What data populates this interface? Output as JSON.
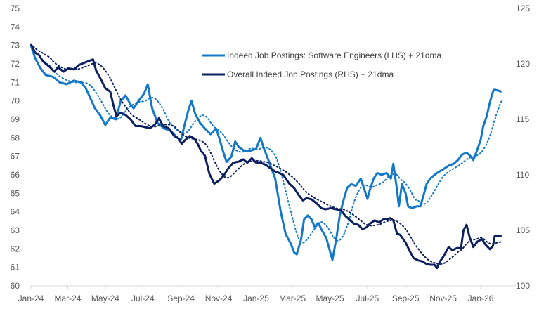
{
  "chart_data": {
    "type": "line",
    "title": "",
    "xlabel": "",
    "ylabel_left": "",
    "ylabel_right": "",
    "x_ticks": [
      "Jan-24",
      "Mar-24",
      "May-24",
      "Jul-24",
      "Sep-24",
      "Nov-24",
      "Jan-25",
      "Mar-25",
      "May-25",
      "Jul-25",
      "Sep-25",
      "Nov-25",
      "Jan-26"
    ],
    "y_left": {
      "range": [
        60,
        75
      ],
      "ticks": [
        "60",
        "61",
        "62",
        "63",
        "64",
        "65",
        "66",
        "67",
        "68",
        "69",
        "70",
        "71",
        "72",
        "73",
        "74",
        "75"
      ]
    },
    "y_right": {
      "range": [
        100,
        125
      ],
      "ticks": [
        "100",
        "105",
        "110",
        "115",
        "120",
        "125"
      ]
    },
    "grid": false,
    "legend": {
      "placement": "top-right",
      "entries": [
        "Indeed Job Postings: Software Engineers (LHS) + 21dma",
        "Overall Indeed Job Postings (RHS) + 21dma"
      ]
    },
    "moving_average": "21dma, dotted",
    "series": [
      {
        "name": "Indeed Job Postings: Software Engineers (LHS) + 21dma",
        "axis": "left",
        "color": "#1478c8",
        "points": [
          [
            "2024-01-01",
            73.0
          ],
          [
            "2024-01-08",
            72.3
          ],
          [
            "2024-01-16",
            71.8
          ],
          [
            "2024-01-25",
            71.4
          ],
          [
            "2024-02-06",
            71.3
          ],
          [
            "2024-02-17",
            71.0
          ],
          [
            "2024-02-28",
            70.9
          ],
          [
            "2024-03-11",
            71.1
          ],
          [
            "2024-03-22",
            71.0
          ],
          [
            "2024-03-30",
            70.7
          ],
          [
            "2024-04-06",
            70.2
          ],
          [
            "2024-04-14",
            69.6
          ],
          [
            "2024-04-23",
            69.2
          ],
          [
            "2024-05-01",
            68.7
          ],
          [
            "2024-05-09",
            69.1
          ],
          [
            "2024-05-18",
            69.0
          ],
          [
            "2024-05-26",
            70.0
          ],
          [
            "2024-06-03",
            70.3
          ],
          [
            "2024-06-11",
            69.8
          ],
          [
            "2024-06-16",
            69.6
          ],
          [
            "2024-06-24",
            70.0
          ],
          [
            "2024-07-03",
            70.4
          ],
          [
            "2024-07-09",
            70.9
          ],
          [
            "2024-07-16",
            69.6
          ],
          [
            "2024-07-25",
            68.8
          ],
          [
            "2024-08-05",
            68.5
          ],
          [
            "2024-08-15",
            68.4
          ],
          [
            "2024-08-26",
            68.0
          ],
          [
            "2024-09-01",
            67.9
          ],
          [
            "2024-09-06",
            68.6
          ],
          [
            "2024-09-13",
            69.5
          ],
          [
            "2024-09-18",
            70.0
          ],
          [
            "2024-09-24",
            69.3
          ],
          [
            "2024-10-02",
            68.8
          ],
          [
            "2024-10-10",
            68.5
          ],
          [
            "2024-10-19",
            68.2
          ],
          [
            "2024-10-28",
            68.5
          ],
          [
            "2024-11-02",
            68.0
          ],
          [
            "2024-11-09",
            67.2
          ],
          [
            "2024-11-14",
            66.7
          ],
          [
            "2024-11-22",
            67.0
          ],
          [
            "2024-11-28",
            67.8
          ],
          [
            "2024-12-04",
            67.5
          ],
          [
            "2024-12-13",
            67.3
          ],
          [
            "2024-12-22",
            67.3
          ],
          [
            "2025-01-01",
            67.4
          ],
          [
            "2025-01-08",
            68.0
          ],
          [
            "2025-01-13",
            67.5
          ],
          [
            "2025-01-21",
            66.8
          ],
          [
            "2025-02-01",
            65.8
          ],
          [
            "2025-02-10",
            64.0
          ],
          [
            "2025-02-18",
            62.8
          ],
          [
            "2025-02-26",
            62.3
          ],
          [
            "2025-03-04",
            61.8
          ],
          [
            "2025-03-08",
            61.7
          ],
          [
            "2025-03-15",
            62.5
          ],
          [
            "2025-03-20",
            63.6
          ],
          [
            "2025-03-26",
            63.8
          ],
          [
            "2025-04-01",
            63.6
          ],
          [
            "2025-04-06",
            63.2
          ],
          [
            "2025-04-12",
            63.4
          ],
          [
            "2025-04-18",
            63.0
          ],
          [
            "2025-04-25",
            62.6
          ],
          [
            "2025-04-30",
            62.0
          ],
          [
            "2025-05-05",
            61.4
          ],
          [
            "2025-05-11",
            62.5
          ],
          [
            "2025-05-17",
            63.8
          ],
          [
            "2025-05-22",
            64.5
          ],
          [
            "2025-05-29",
            65.3
          ],
          [
            "2025-06-05",
            65.5
          ],
          [
            "2025-06-12",
            65.4
          ],
          [
            "2025-06-20",
            65.8
          ],
          [
            "2025-06-25",
            65.3
          ],
          [
            "2025-07-01",
            64.7
          ],
          [
            "2025-07-05",
            65.2
          ],
          [
            "2025-07-11",
            65.8
          ],
          [
            "2025-07-17",
            66.1
          ],
          [
            "2025-07-24",
            66.0
          ],
          [
            "2025-08-01",
            66.1
          ],
          [
            "2025-08-08",
            65.8
          ],
          [
            "2025-08-12",
            66.6
          ],
          [
            "2025-08-18",
            65.2
          ],
          [
            "2025-08-21",
            64.3
          ],
          [
            "2025-08-26",
            65.5
          ],
          [
            "2025-09-01",
            65.0
          ],
          [
            "2025-09-05",
            64.3
          ],
          [
            "2025-09-11",
            64.2
          ],
          [
            "2025-09-19",
            64.3
          ],
          [
            "2025-09-25",
            64.3
          ],
          [
            "2025-10-01",
            65.0
          ],
          [
            "2025-10-05",
            65.5
          ],
          [
            "2025-10-11",
            65.8
          ],
          [
            "2025-10-18",
            66.0
          ],
          [
            "2025-10-22",
            66.1
          ],
          [
            "2025-11-01",
            66.3
          ],
          [
            "2025-11-10",
            66.5
          ],
          [
            "2025-11-18",
            66.6
          ],
          [
            "2025-11-25",
            66.8
          ],
          [
            "2025-12-02",
            67.1
          ],
          [
            "2025-12-09",
            67.2
          ],
          [
            "2025-12-16",
            67.0
          ],
          [
            "2025-12-20",
            66.8
          ],
          [
            "2025-12-27",
            67.4
          ],
          [
            "2026-01-01",
            67.9
          ],
          [
            "2026-01-05",
            68.6
          ],
          [
            "2026-01-11",
            69.2
          ],
          [
            "2026-01-15",
            69.8
          ],
          [
            "2026-01-19",
            70.3
          ],
          [
            "2026-01-22",
            70.6
          ],
          [
            "2026-01-25",
            70.6
          ],
          [
            "2026-02-04",
            70.5
          ]
        ]
      },
      {
        "name": "Overall Indeed Job Postings (RHS) + 21dma",
        "axis": "right",
        "color": "#0c1f5e",
        "points": [
          [
            "2024-01-01",
            121.8
          ],
          [
            "2024-01-08",
            121.0
          ],
          [
            "2024-01-14",
            120.8
          ],
          [
            "2024-01-21",
            120.2
          ],
          [
            "2024-02-01",
            119.7
          ],
          [
            "2024-02-08",
            119.3
          ],
          [
            "2024-02-14",
            119.7
          ],
          [
            "2024-02-23",
            119.3
          ],
          [
            "2024-03-02",
            119.6
          ],
          [
            "2024-03-11",
            119.5
          ],
          [
            "2024-03-19",
            119.9
          ],
          [
            "2024-03-28",
            120.1
          ],
          [
            "2024-04-06",
            120.3
          ],
          [
            "2024-04-11",
            120.4
          ],
          [
            "2024-04-16",
            119.4
          ],
          [
            "2024-04-23",
            118.7
          ],
          [
            "2024-05-01",
            117.8
          ],
          [
            "2024-05-09",
            117.5
          ],
          [
            "2024-05-14",
            116.3
          ],
          [
            "2024-05-19",
            115.3
          ],
          [
            "2024-05-26",
            115.6
          ],
          [
            "2024-06-03",
            115.4
          ],
          [
            "2024-06-11",
            115.0
          ],
          [
            "2024-06-19",
            114.4
          ],
          [
            "2024-06-28",
            114.4
          ],
          [
            "2024-07-05",
            114.3
          ],
          [
            "2024-07-12",
            114.2
          ],
          [
            "2024-07-20",
            114.5
          ],
          [
            "2024-07-27",
            115.1
          ],
          [
            "2024-08-03",
            114.4
          ],
          [
            "2024-08-12",
            114.2
          ],
          [
            "2024-08-21",
            113.5
          ],
          [
            "2024-08-28",
            113.3
          ],
          [
            "2024-09-02",
            112.8
          ],
          [
            "2024-09-07",
            113.1
          ],
          [
            "2024-09-15",
            113.5
          ],
          [
            "2024-09-22",
            113.3
          ],
          [
            "2024-09-28",
            112.8
          ],
          [
            "2024-10-03",
            112.2
          ],
          [
            "2024-10-10",
            111.7
          ],
          [
            "2024-10-17",
            110.1
          ],
          [
            "2024-10-25",
            109.2
          ],
          [
            "2024-11-02",
            109.5
          ],
          [
            "2024-11-09",
            109.9
          ],
          [
            "2024-11-17",
            110.6
          ],
          [
            "2024-11-25",
            111.1
          ],
          [
            "2024-12-04",
            111.2
          ],
          [
            "2024-12-11",
            111.4
          ],
          [
            "2024-12-18",
            111.1
          ],
          [
            "2024-12-25",
            111.5
          ],
          [
            "2025-01-01",
            111.1
          ],
          [
            "2025-01-08",
            111.1
          ],
          [
            "2025-01-17",
            110.9
          ],
          [
            "2025-01-24",
            110.6
          ],
          [
            "2025-02-01",
            110.3
          ],
          [
            "2025-02-06",
            110.2
          ],
          [
            "2025-02-14",
            110.0
          ],
          [
            "2025-02-24",
            109.2
          ],
          [
            "2025-03-04",
            108.8
          ],
          [
            "2025-03-11",
            108.2
          ],
          [
            "2025-03-18",
            107.7
          ],
          [
            "2025-03-24",
            107.9
          ],
          [
            "2025-04-01",
            107.8
          ],
          [
            "2025-04-10",
            107.4
          ],
          [
            "2025-04-17",
            107.0
          ],
          [
            "2025-04-24",
            106.9
          ],
          [
            "2025-05-02",
            107.0
          ],
          [
            "2025-05-11",
            106.9
          ],
          [
            "2025-05-19",
            106.8
          ],
          [
            "2025-05-26",
            106.3
          ],
          [
            "2025-06-03",
            105.9
          ],
          [
            "2025-06-09",
            105.6
          ],
          [
            "2025-06-16",
            105.5
          ],
          [
            "2025-06-23",
            105.1
          ],
          [
            "2025-06-30",
            105.3
          ],
          [
            "2025-07-05",
            105.6
          ],
          [
            "2025-07-13",
            105.9
          ],
          [
            "2025-07-20",
            105.7
          ],
          [
            "2025-07-27",
            106.0
          ],
          [
            "2025-08-03",
            106.0
          ],
          [
            "2025-08-07",
            106.1
          ],
          [
            "2025-08-12",
            105.9
          ],
          [
            "2025-08-18",
            104.7
          ],
          [
            "2025-08-23",
            104.6
          ],
          [
            "2025-09-01",
            103.9
          ],
          [
            "2025-09-08",
            103.1
          ],
          [
            "2025-09-14",
            102.5
          ],
          [
            "2025-09-21",
            102.3
          ],
          [
            "2025-09-28",
            102.2
          ],
          [
            "2025-10-04",
            102.0
          ],
          [
            "2025-10-11",
            101.9
          ],
          [
            "2025-10-18",
            101.9
          ],
          [
            "2025-10-22",
            101.6
          ],
          [
            "2025-10-27",
            102.2
          ],
          [
            "2025-11-02",
            102.7
          ],
          [
            "2025-11-10",
            103.5
          ],
          [
            "2025-11-16",
            103.2
          ],
          [
            "2025-11-23",
            103.4
          ],
          [
            "2025-11-30",
            103.4
          ],
          [
            "2025-12-04",
            105.0
          ],
          [
            "2025-12-09",
            105.5
          ],
          [
            "2025-12-14",
            104.4
          ],
          [
            "2025-12-20",
            103.5
          ],
          [
            "2025-12-27",
            104.0
          ],
          [
            "2026-01-03",
            104.2
          ],
          [
            "2026-01-09",
            103.7
          ],
          [
            "2026-01-16",
            103.3
          ],
          [
            "2026-01-21",
            103.6
          ],
          [
            "2026-01-24",
            104.5
          ],
          [
            "2026-02-04",
            104.5
          ]
        ]
      }
    ]
  }
}
